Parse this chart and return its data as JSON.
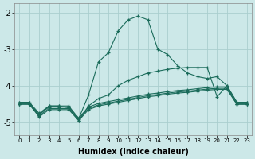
{
  "background_color": "#cce8e8",
  "grid_color": "#aacece",
  "line_color": "#1a6b5a",
  "xlabel": "Humidex (Indice chaleur)",
  "xlim": [
    -0.5,
    23.5
  ],
  "ylim": [
    -5.35,
    -1.75
  ],
  "yticks": [
    -5,
    -4,
    -3,
    -2
  ],
  "xticks": [
    0,
    1,
    2,
    3,
    4,
    5,
    6,
    7,
    8,
    9,
    10,
    11,
    12,
    13,
    14,
    15,
    16,
    17,
    18,
    19,
    20,
    21,
    22,
    23
  ],
  "series": [
    {
      "x": [
        0,
        1,
        2,
        3,
        4,
        5,
        6,
        7,
        8,
        9,
        10,
        11,
        12,
        13,
        14,
        15,
        16,
        17,
        18,
        19,
        20,
        21,
        22,
        23
      ],
      "y": [
        -4.45,
        -4.45,
        -4.8,
        -4.55,
        -4.55,
        -4.55,
        -4.9,
        -4.25,
        -3.35,
        -3.1,
        -2.5,
        -2.2,
        -2.1,
        -2.2,
        -3.0,
        -3.15,
        -3.45,
        -3.65,
        -3.75,
        -3.8,
        -3.75,
        -4.0,
        -4.45,
        -4.45
      ]
    },
    {
      "x": [
        0,
        1,
        2,
        3,
        4,
        5,
        6,
        7,
        8,
        9,
        10,
        11,
        12,
        13,
        14,
        15,
        16,
        17,
        18,
        19,
        20,
        21,
        22,
        23
      ],
      "y": [
        -4.45,
        -4.45,
        -4.75,
        -4.55,
        -4.55,
        -4.6,
        -4.95,
        -4.55,
        -4.35,
        -4.25,
        -4.0,
        -3.85,
        -3.75,
        -3.65,
        -3.6,
        -3.55,
        -3.52,
        -3.5,
        -3.5,
        -3.5,
        -4.3,
        -4.0,
        -4.45,
        -4.45
      ]
    },
    {
      "x": [
        0,
        1,
        2,
        3,
        4,
        5,
        6,
        7,
        8,
        9,
        10,
        11,
        12,
        13,
        14,
        15,
        16,
        17,
        18,
        19,
        20,
        21,
        22,
        23
      ],
      "y": [
        -4.5,
        -4.5,
        -4.85,
        -4.65,
        -4.65,
        -4.65,
        -4.95,
        -4.65,
        -4.55,
        -4.5,
        -4.45,
        -4.4,
        -4.35,
        -4.3,
        -4.27,
        -4.23,
        -4.2,
        -4.18,
        -4.15,
        -4.12,
        -4.1,
        -4.1,
        -4.5,
        -4.5
      ]
    },
    {
      "x": [
        0,
        1,
        2,
        3,
        4,
        5,
        6,
        7,
        8,
        9,
        10,
        11,
        12,
        13,
        14,
        15,
        16,
        17,
        18,
        19,
        20,
        21,
        22,
        23
      ],
      "y": [
        -4.5,
        -4.5,
        -4.82,
        -4.62,
        -4.62,
        -4.62,
        -4.92,
        -4.62,
        -4.52,
        -4.47,
        -4.42,
        -4.37,
        -4.32,
        -4.27,
        -4.24,
        -4.2,
        -4.17,
        -4.15,
        -4.12,
        -4.09,
        -4.07,
        -4.07,
        -4.5,
        -4.5
      ]
    },
    {
      "x": [
        0,
        1,
        2,
        3,
        4,
        5,
        6,
        7,
        8,
        9,
        10,
        11,
        12,
        13,
        14,
        15,
        16,
        17,
        18,
        19,
        20,
        21,
        22,
        23
      ],
      "y": [
        -4.5,
        -4.5,
        -4.78,
        -4.58,
        -4.58,
        -4.58,
        -4.88,
        -4.58,
        -4.48,
        -4.43,
        -4.38,
        -4.33,
        -4.28,
        -4.23,
        -4.2,
        -4.16,
        -4.13,
        -4.11,
        -4.08,
        -4.05,
        -4.03,
        -4.03,
        -4.5,
        -4.5
      ]
    }
  ]
}
